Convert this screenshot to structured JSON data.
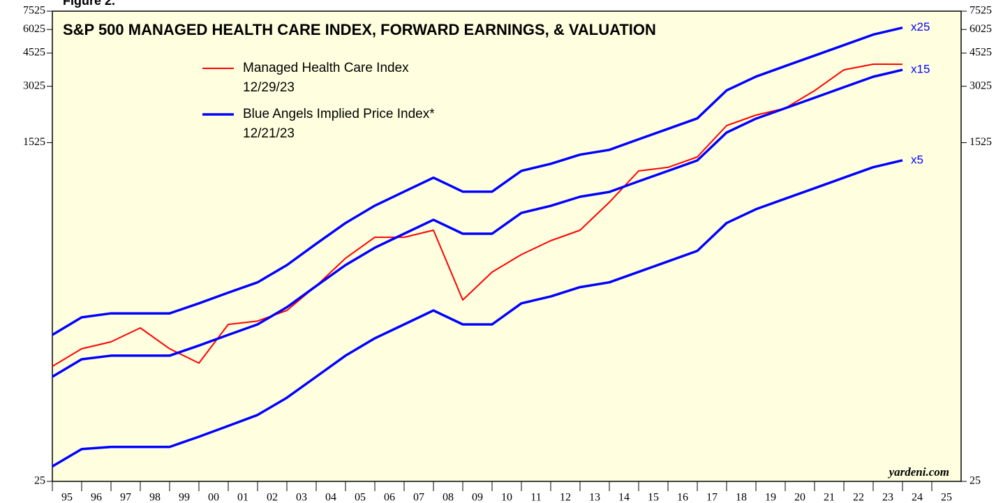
{
  "chart_data": {
    "type": "line",
    "figure_label": "Figure 2.",
    "title": "S&P 500 MANAGED HEALTH CARE INDEX, FORWARD EARNINGS, & VALUATION",
    "source": "yardeni.com",
    "log_scale": true,
    "x": [
      1995,
      1996,
      1997,
      1998,
      1999,
      2000,
      2001,
      2002,
      2003,
      2004,
      2005,
      2006,
      2007,
      2008,
      2009,
      2010,
      2011,
      2012,
      2013,
      2014,
      2015,
      2016,
      2017,
      2018,
      2019,
      2020,
      2021,
      2022,
      2023,
      2024
    ],
    "xlim": [
      1995,
      2026
    ],
    "xticks": [
      {
        "value": 1995,
        "label": "95"
      },
      {
        "value": 1996,
        "label": "96"
      },
      {
        "value": 1997,
        "label": "97"
      },
      {
        "value": 1998,
        "label": "98"
      },
      {
        "value": 1999,
        "label": "99"
      },
      {
        "value": 2000,
        "label": "00"
      },
      {
        "value": 2001,
        "label": "01"
      },
      {
        "value": 2002,
        "label": "02"
      },
      {
        "value": 2003,
        "label": "03"
      },
      {
        "value": 2004,
        "label": "04"
      },
      {
        "value": 2005,
        "label": "05"
      },
      {
        "value": 2006,
        "label": "06"
      },
      {
        "value": 2007,
        "label": "07"
      },
      {
        "value": 2008,
        "label": "08"
      },
      {
        "value": 2009,
        "label": "09"
      },
      {
        "value": 2010,
        "label": "10"
      },
      {
        "value": 2011,
        "label": "11"
      },
      {
        "value": 2012,
        "label": "12"
      },
      {
        "value": 2013,
        "label": "13"
      },
      {
        "value": 2014,
        "label": "14"
      },
      {
        "value": 2015,
        "label": "15"
      },
      {
        "value": 2016,
        "label": "16"
      },
      {
        "value": 2017,
        "label": "17"
      },
      {
        "value": 2018,
        "label": "18"
      },
      {
        "value": 2019,
        "label": "19"
      },
      {
        "value": 2020,
        "label": "20"
      },
      {
        "value": 2021,
        "label": "21"
      },
      {
        "value": 2022,
        "label": "22"
      },
      {
        "value": 2023,
        "label": "23"
      },
      {
        "value": 2024,
        "label": "24"
      },
      {
        "value": 2025,
        "label": "25"
      }
    ],
    "ylim": [
      25,
      7525
    ],
    "yticks": [
      25,
      1525,
      3025,
      4525,
      6025,
      7525
    ],
    "legend": [
      {
        "name": "Managed Health Care Index",
        "date": "12/29/23",
        "color": "#ff0000"
      },
      {
        "name": "Blue Angels Implied Price Index*",
        "date": "12/21/23",
        "color": "#0000ff"
      }
    ],
    "series": [
      {
        "name": "Managed Health Care Index",
        "color": "#ff0000",
        "values": [
          101,
          125,
          136,
          161,
          125,
          105,
          168,
          175,
          199,
          268,
          375,
          484,
          484,
          527,
          226,
          317,
          392,
          464,
          527,
          740,
          1082,
          1130,
          1282,
          1877,
          2131,
          2318,
          2866,
          3693,
          3953,
          3950
        ]
      },
      {
        "name": "x25",
        "color": "#0000ff",
        "values": [
          148,
          183,
          192,
          192,
          192,
          217,
          247,
          280,
          345,
          447,
          575,
          710,
          842,
          997,
          842,
          842,
          1083,
          1180,
          1318,
          1398,
          1590,
          1803,
          2048,
          2875,
          3402,
          3863,
          4387,
          4983,
          5660,
          6155
        ]
      },
      {
        "name": "x15",
        "color": "#0000ff",
        "values": [
          89,
          110,
          115,
          115,
          115,
          130,
          148,
          168,
          207,
          268,
          345,
          426,
          505,
          598,
          505,
          505,
          650,
          708,
          791,
          839,
          954,
          1082,
          1229,
          1725,
          2041,
          2318,
          2632,
          2990,
          3396,
          3693
        ]
      },
      {
        "name": "x5",
        "color": "#0000ff",
        "values": [
          30,
          37,
          38,
          38,
          38,
          43,
          49,
          56,
          69,
          89,
          115,
          142,
          168,
          199,
          168,
          168,
          217,
          236,
          264,
          280,
          318,
          361,
          410,
          575,
          680,
          773,
          877,
          997,
          1132,
          1231
        ]
      }
    ]
  }
}
